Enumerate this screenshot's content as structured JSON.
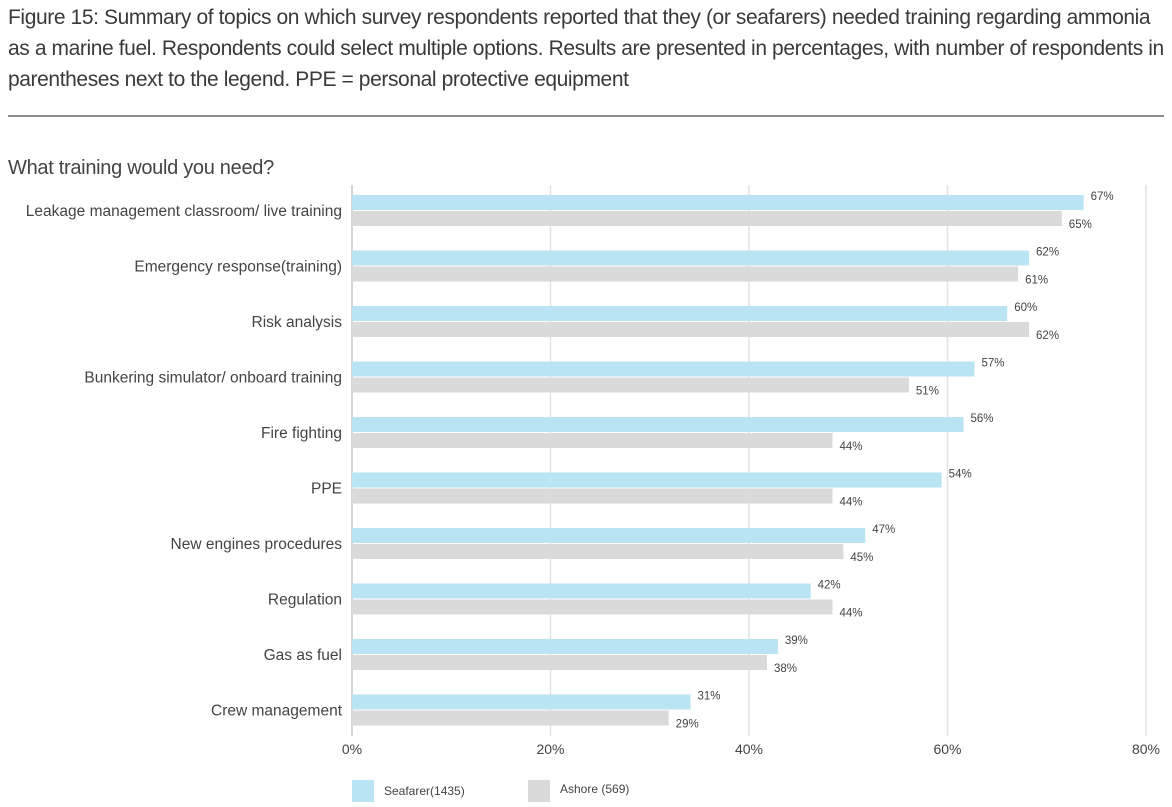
{
  "caption": "Figure 15: Summary of topics on which survey respondents reported that they (or seafarers) needed training regarding ammonia as a marine fuel. Respondents could select multiple options. Results are presented in percentages, with number of respondents in parentheses next to the legend. PPE = personal protective equipment",
  "chart_data": {
    "type": "bar",
    "orientation": "horizontal",
    "title": "What training would you need?",
    "xlabel": "",
    "ylabel": "",
    "xlim": [
      0,
      80
    ],
    "x_ticks": [
      "0%",
      "20%",
      "40%",
      "60%",
      "80%"
    ],
    "grid": "vertical",
    "legend_position": "bottom-left",
    "categories": [
      "Leakage management classroom/ live training",
      "Emergency response(training)",
      "Risk analysis",
      "Bunkering simulator/ onboard training",
      "Fire fighting",
      "PPE",
      "New engines procedures",
      "Regulation",
      "Gas as fuel",
      "Crew management"
    ],
    "series": [
      {
        "name": "Seafarer(1435)",
        "color": "#bae3f3",
        "values": [
          67,
          62,
          60,
          57,
          56,
          54,
          47,
          42,
          39,
          31
        ],
        "labels": [
          "67%",
          "62%",
          "60%",
          "57%",
          "56%",
          "54%",
          "47%",
          "42%",
          "39%",
          "31%"
        ]
      },
      {
        "name": "Ashore (569)",
        "color": "#dadada",
        "values": [
          65,
          61,
          62,
          51,
          44,
          44,
          45,
          44,
          38,
          29
        ],
        "labels": [
          "65%",
          "61%",
          "62%",
          "51%",
          "44%",
          "44%",
          "45%",
          "44%",
          "38%",
          "29%"
        ]
      }
    ]
  }
}
